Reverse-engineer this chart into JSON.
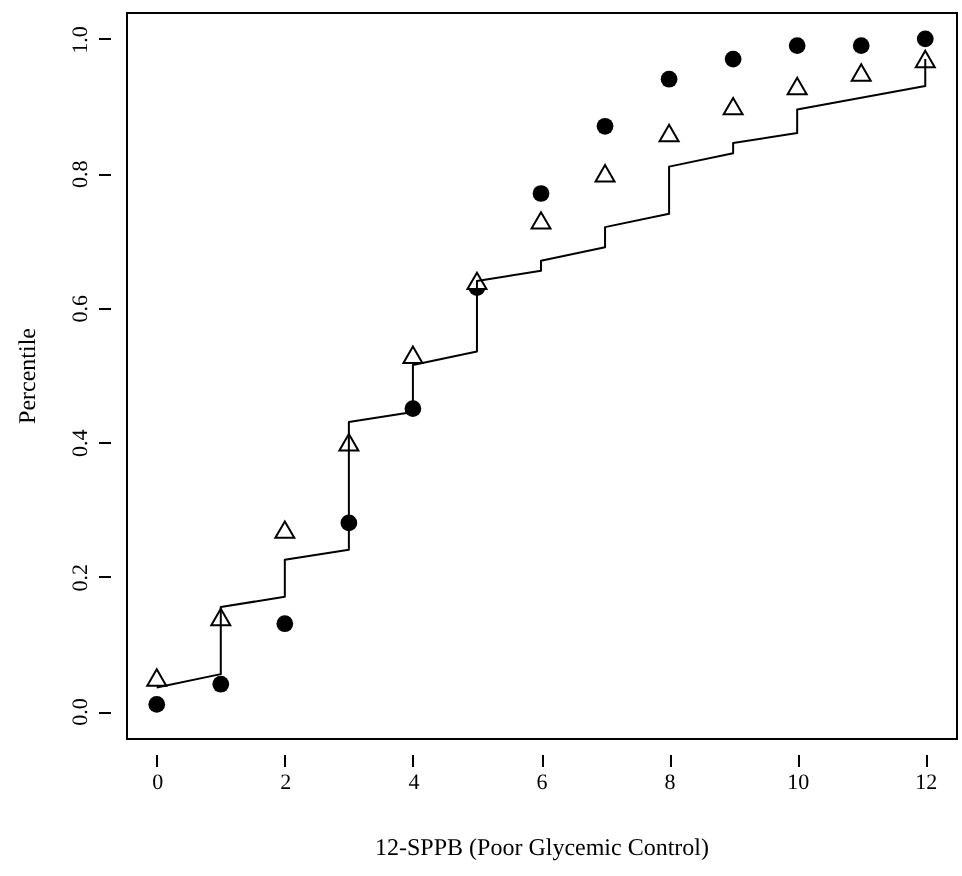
{
  "chart_data": {
    "type": "scatter",
    "xlabel": "12-SPPB (Poor Glycemic Control)",
    "ylabel": "Percentile",
    "x": [
      0,
      1,
      2,
      3,
      4,
      5,
      6,
      7,
      8,
      9,
      10,
      11,
      12
    ],
    "series": [
      {
        "marker": "circle",
        "color": "#000000",
        "values": [
          0.01,
          0.04,
          0.13,
          0.28,
          0.45,
          0.63,
          0.77,
          0.87,
          0.94,
          0.97,
          0.99,
          0.99,
          1.0
        ]
      },
      {
        "marker": "triangle",
        "color": "#000000",
        "values": [
          0.05,
          0.14,
          0.27,
          0.4,
          0.53,
          0.64,
          0.73,
          0.8,
          0.86,
          0.9,
          0.93,
          0.95,
          0.97
        ]
      },
      {
        "type": "line",
        "marker": "none",
        "line_style": "solid",
        "color": "#000000",
        "x": [
          0,
          1,
          1,
          2,
          2,
          3,
          3,
          4,
          4,
          5,
          5,
          6,
          6,
          7,
          7,
          8,
          8,
          9,
          9,
          10,
          10,
          12,
          12
        ],
        "values": [
          0.035,
          0.055,
          0.155,
          0.17,
          0.225,
          0.24,
          0.43,
          0.445,
          0.515,
          0.535,
          0.64,
          0.655,
          0.67,
          0.69,
          0.72,
          0.74,
          0.81,
          0.83,
          0.845,
          0.86,
          0.895,
          0.93,
          0.97
        ]
      }
    ],
    "xlim": [
      -0.48,
      12.48
    ],
    "ylim": [
      -0.04,
      1.04
    ],
    "xticks": [
      0,
      2,
      4,
      6,
      8,
      10,
      12
    ],
    "yticks": [
      {
        "value": 0,
        "label": "0.0"
      },
      {
        "value": 0.2,
        "label": "0.2"
      },
      {
        "value": 0.4,
        "label": "0.4"
      },
      {
        "value": 0.6,
        "label": "0.6"
      },
      {
        "value": 0.8,
        "label": "0.8"
      },
      {
        "value": 1,
        "label": "1.0"
      }
    ],
    "grid": false
  }
}
